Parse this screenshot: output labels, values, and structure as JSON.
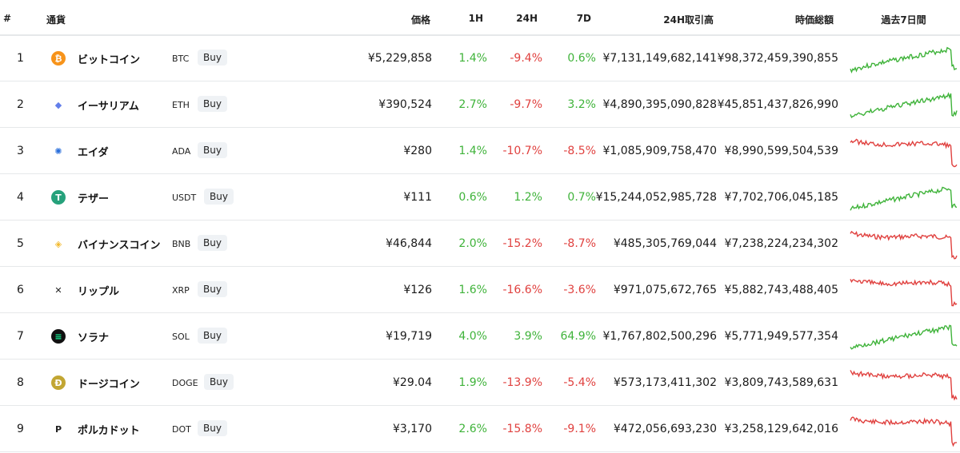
{
  "header": {
    "rank": "#",
    "currency": "通貨",
    "price": "価格",
    "h1": "1H",
    "h24": "24H",
    "d7": "7D",
    "volume": "24H取引高",
    "mcap": "時価総額",
    "chart": "過去7日間"
  },
  "buy_label": "Buy",
  "colors": {
    "up": "#3fb33a",
    "down": "#e0413f",
    "border": "#e6e8ea",
    "buy_bg": "#eff2f5"
  },
  "coins": [
    {
      "rank": "1",
      "name": "ビットコイン",
      "symbol": "BTC",
      "icon": "bitcoin-icon",
      "price": "¥5,229,858",
      "h1": "1.4%",
      "h24": "-9.4%",
      "d7": "0.6%",
      "volume": "¥7,131,149,682,141",
      "mcap": "¥98,372,459,390,855",
      "trend": "up"
    },
    {
      "rank": "2",
      "name": "イーサリアム",
      "symbol": "ETH",
      "icon": "ethereum-icon",
      "price": "¥390,524",
      "h1": "2.7%",
      "h24": "-9.7%",
      "d7": "3.2%",
      "volume": "¥4,890,395,090,828",
      "mcap": "¥45,851,437,826,990",
      "trend": "up"
    },
    {
      "rank": "3",
      "name": "エイダ",
      "symbol": "ADA",
      "icon": "cardano-icon",
      "price": "¥280",
      "h1": "1.4%",
      "h24": "-10.7%",
      "d7": "-8.5%",
      "volume": "¥1,085,909,758,470",
      "mcap": "¥8,990,599,504,539",
      "trend": "down"
    },
    {
      "rank": "4",
      "name": "テザー",
      "symbol": "USDT",
      "icon": "tether-icon",
      "price": "¥111",
      "h1": "0.6%",
      "h24": "1.2%",
      "d7": "0.7%",
      "volume": "¥15,244,052,985,728",
      "mcap": "¥7,702,706,045,185",
      "trend": "up"
    },
    {
      "rank": "5",
      "name": "バイナンスコイン",
      "symbol": "BNB",
      "icon": "binance-coin-icon",
      "price": "¥46,844",
      "h1": "2.0%",
      "h24": "-15.2%",
      "d7": "-8.7%",
      "volume": "¥485,305,769,044",
      "mcap": "¥7,238,224,234,302",
      "trend": "down"
    },
    {
      "rank": "6",
      "name": "リップル",
      "symbol": "XRP",
      "icon": "xrp-icon",
      "price": "¥126",
      "h1": "1.6%",
      "h24": "-16.6%",
      "d7": "-3.6%",
      "volume": "¥971,075,672,765",
      "mcap": "¥5,882,743,488,405",
      "trend": "down"
    },
    {
      "rank": "7",
      "name": "ソラナ",
      "symbol": "SOL",
      "icon": "solana-icon",
      "price": "¥19,719",
      "h1": "4.0%",
      "h24": "3.9%",
      "d7": "64.9%",
      "volume": "¥1,767,802,500,296",
      "mcap": "¥5,771,949,577,354",
      "trend": "up"
    },
    {
      "rank": "8",
      "name": "ドージコイン",
      "symbol": "DOGE",
      "icon": "dogecoin-icon",
      "price": "¥29.04",
      "h1": "1.9%",
      "h24": "-13.9%",
      "d7": "-5.4%",
      "volume": "¥573,173,411,302",
      "mcap": "¥3,809,743,589,631",
      "trend": "down"
    },
    {
      "rank": "9",
      "name": "ポルカドット",
      "symbol": "DOT",
      "icon": "polkadot-icon",
      "price": "¥3,170",
      "h1": "2.6%",
      "h24": "-15.8%",
      "d7": "-9.1%",
      "volume": "¥472,056,693,230",
      "mcap": "¥3,258,129,642,016",
      "trend": "down"
    }
  ]
}
